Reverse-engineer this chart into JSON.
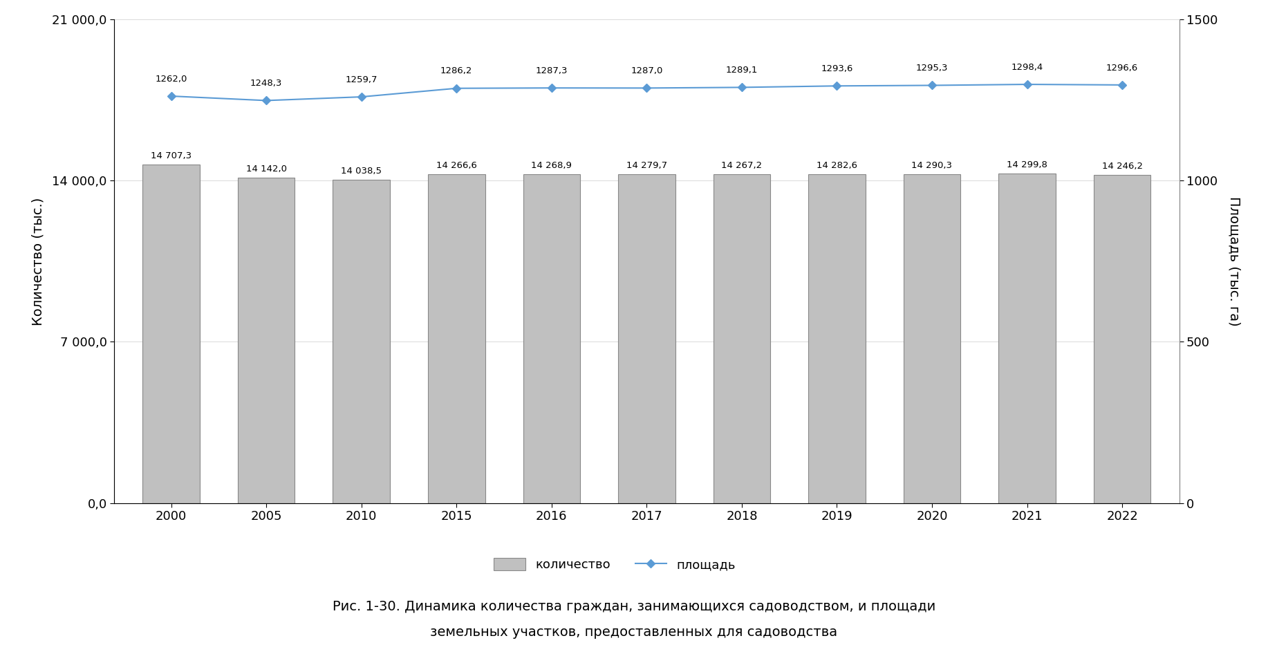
{
  "years": [
    2000,
    2005,
    2010,
    2015,
    2016,
    2017,
    2018,
    2019,
    2020,
    2021,
    2022
  ],
  "quantity": [
    14707.3,
    14142.0,
    14038.5,
    14266.6,
    14268.9,
    14279.7,
    14267.2,
    14282.6,
    14290.3,
    14299.8,
    14246.2
  ],
  "area": [
    1262.0,
    1248.3,
    1259.7,
    1286.2,
    1287.3,
    1287.0,
    1289.1,
    1293.6,
    1295.3,
    1298.4,
    1296.6
  ],
  "quantity_labels": [
    "14 707,3",
    "14 142,0",
    "14 038,5",
    "14 266,6",
    "14 268,9",
    "14 279,7",
    "14 267,2",
    "14 282,6",
    "14 290,3",
    "14 299,8",
    "14 246,2"
  ],
  "area_labels": [
    "1262,0",
    "1248,3",
    "1259,7",
    "1286,2",
    "1287,3",
    "1287,0",
    "1289,1",
    "1293,6",
    "1295,3",
    "1298,4",
    "1296,6"
  ],
  "bar_color": "#c0c0c0",
  "bar_edge_color": "#888888",
  "line_color": "#5b9bd5",
  "marker_color": "#5b9bd5",
  "left_ylabel": "Количество (тыс.)",
  "right_ylabel": "Площадь (тыс. га)",
  "left_ylim": [
    0,
    21000
  ],
  "right_ylim": [
    0,
    1500
  ],
  "left_yticks": [
    0,
    7000,
    14000,
    21000
  ],
  "left_yticklabels": [
    "0,0",
    "7 000,0",
    "14 000,0",
    "21 000,0"
  ],
  "right_yticks": [
    0,
    500,
    1000,
    1500
  ],
  "right_yticklabels": [
    "0",
    "500",
    "1000",
    "1500"
  ],
  "legend_quantity": "количество",
  "legend_area": "площадь",
  "caption_line1": "Рис. 1-30. Динамика количества граждан, занимающихся садоводством, и площади",
  "caption_line2": "земельных участков, предоставленных для садоводства",
  "background_color": "#ffffff",
  "fig_width": 18.34,
  "fig_height": 9.33,
  "dpi": 100
}
